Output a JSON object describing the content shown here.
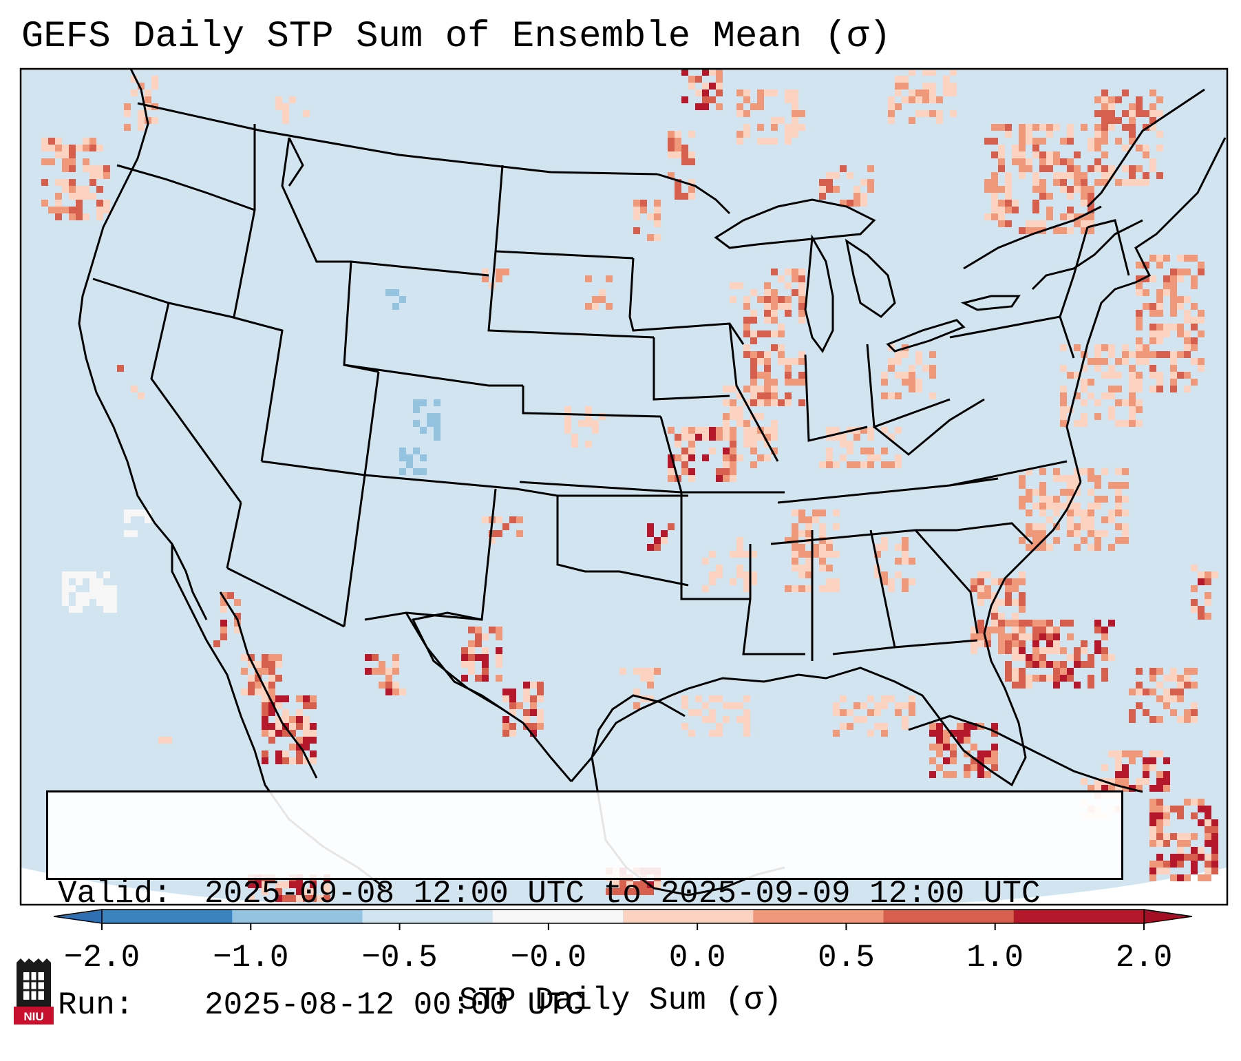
{
  "title": "GEFS Daily STP Sum of Ensemble Mean (σ)",
  "info": {
    "valid_label": "Valid:",
    "valid_value": "2025-09-08 12:00 UTC to 2025-09-09 12:00 UTC",
    "run_label": "Run:",
    "run_value": "2025-08-12 00:00 UTC"
  },
  "colorbar": {
    "title": "STP Daily Sum (σ)",
    "ticks": [
      "−2.0",
      "−1.0",
      "−0.5",
      "−0.0",
      "0.0",
      "0.5",
      "1.0",
      "2.0"
    ],
    "colors": [
      "#3b83be",
      "#93c3df",
      "#d1e4f0",
      "#f7f7f7",
      "#fbd3c0",
      "#f0987a",
      "#d6604d",
      "#b5172b"
    ],
    "extend_low_color": "#2d6fb0",
    "extend_high_color": "#a50f26"
  },
  "legend_colors": {
    "background": "#d1e4f0",
    "neutral": "#f7f7f7",
    "light_red": "#fbd3c0",
    "mid_red": "#f0987a",
    "red": "#d6604d",
    "dark_red": "#b5172b",
    "light_blue": "#93c3df"
  },
  "logo": {
    "text": "NIU",
    "colors": [
      "#c8102e",
      "#000000"
    ]
  }
}
